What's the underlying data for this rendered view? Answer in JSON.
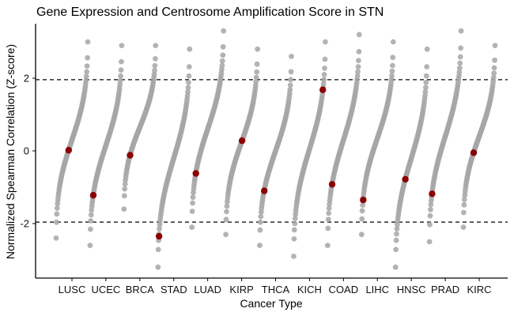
{
  "chart_data": {
    "type": "scatter",
    "title": "Gene Expression and Centrosome Amplification Score in STN",
    "xlabel": "Cancer Type",
    "ylabel": "Normalized Spearman Correlation (Z-score)",
    "ylim": [
      -3.5,
      3.5
    ],
    "yticks": [
      -2,
      0,
      2
    ],
    "reference_lines": [
      -1.96,
      1.96
    ],
    "categories": [
      "LUSC",
      "UCEC",
      "BRCA",
      "STAD",
      "LUAD",
      "KIRP",
      "THCA",
      "KICH",
      "COAD",
      "LIHC",
      "HNSC",
      "PRAD",
      "KIRC"
    ],
    "gene_ranges": [
      {
        "min": -2.4,
        "max": 3.0
      },
      {
        "min": -2.6,
        "max": 2.9
      },
      {
        "min": -1.6,
        "max": 2.9
      },
      {
        "min": -3.2,
        "max": 2.8
      },
      {
        "min": -2.1,
        "max": 3.3
      },
      {
        "min": -2.3,
        "max": 2.8
      },
      {
        "min": -2.6,
        "max": 2.6
      },
      {
        "min": -2.9,
        "max": 3.0
      },
      {
        "min": -2.6,
        "max": 3.2
      },
      {
        "min": -2.3,
        "max": 3.0
      },
      {
        "min": -3.2,
        "max": 2.8
      },
      {
        "min": -2.5,
        "max": 3.3
      },
      {
        "min": -2.1,
        "max": 2.9
      }
    ],
    "highlight_values": [
      0.02,
      -1.22,
      -0.12,
      -2.35,
      -0.62,
      0.28,
      -1.1,
      1.68,
      -0.92,
      -1.35,
      -0.78,
      -1.18,
      -0.05
    ],
    "colors": {
      "background_points": "#a6a6a6",
      "highlight": "#8b0000",
      "axis": "#000000"
    }
  }
}
